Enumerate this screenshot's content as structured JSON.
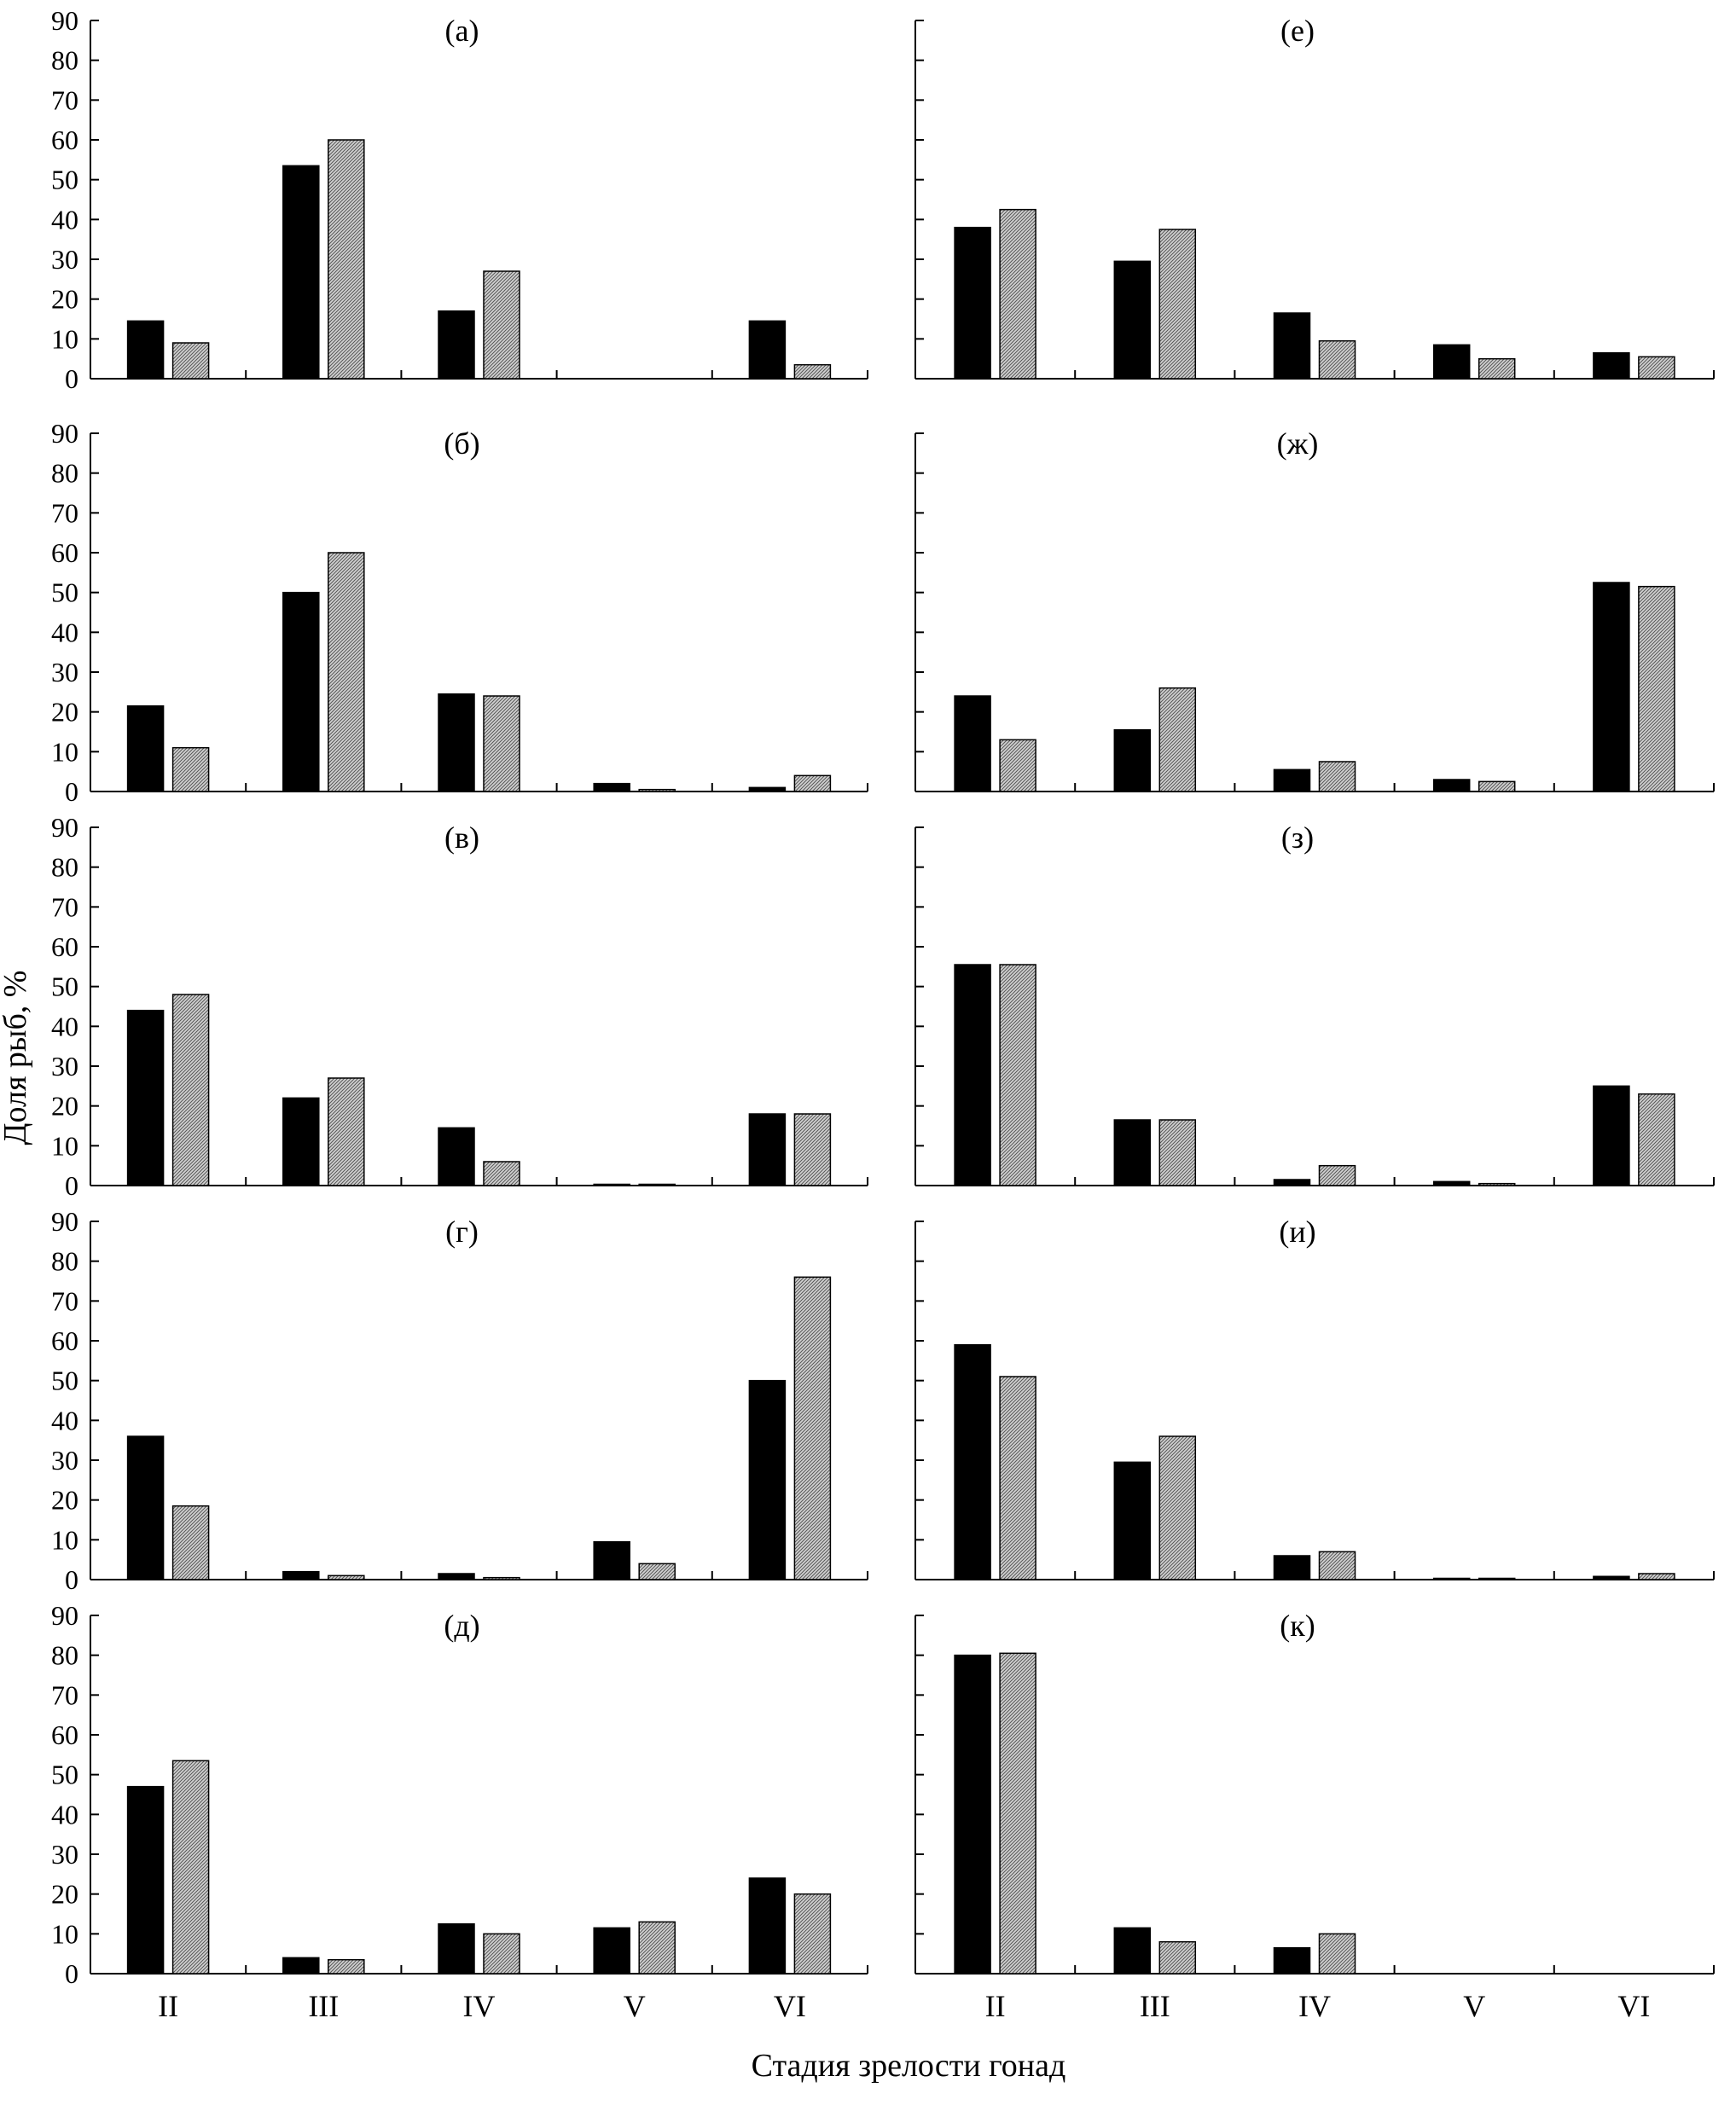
{
  "chart_data": {
    "type": "bar",
    "xlabel": "Стадия зрелости гонад",
    "ylabel": "Доля рыб, %",
    "categories": [
      "II",
      "III",
      "IV",
      "V",
      "VI"
    ],
    "ylim": [
      0,
      90
    ],
    "yticks": [
      "0",
      "10",
      "20",
      "30",
      "40",
      "50",
      "60",
      "70",
      "80",
      "90"
    ],
    "grid": false,
    "series_colors": [
      "#000000",
      "#b8b8b8"
    ],
    "panels": [
      {
        "label": "(а)",
        "series": [
          {
            "values": [
              14.5,
              53.5,
              17,
              0,
              14.5
            ]
          },
          {
            "values": [
              9,
              60,
              27,
              0,
              3.5
            ]
          }
        ]
      },
      {
        "label": "(б)",
        "series": [
          {
            "values": [
              21.5,
              50,
              24.5,
              2,
              1
            ]
          },
          {
            "values": [
              11,
              60,
              24,
              0.5,
              4
            ]
          }
        ]
      },
      {
        "label": "(в)",
        "series": [
          {
            "values": [
              44,
              22,
              14.5,
              0.3,
              18
            ]
          },
          {
            "values": [
              48,
              27,
              6,
              0.3,
              18
            ]
          }
        ]
      },
      {
        "label": "(г)",
        "series": [
          {
            "values": [
              36,
              2,
              1.5,
              9.5,
              50
            ]
          },
          {
            "values": [
              18.5,
              1,
              0.5,
              4,
              76
            ]
          }
        ]
      },
      {
        "label": "(д)",
        "series": [
          {
            "values": [
              47,
              4,
              12.5,
              11.5,
              24
            ]
          },
          {
            "values": [
              53.5,
              3.5,
              10,
              13,
              20
            ]
          }
        ]
      },
      {
        "label": "(е)",
        "series": [
          {
            "values": [
              38,
              29.5,
              16.5,
              8.5,
              6.5
            ]
          },
          {
            "values": [
              42.5,
              37.5,
              9.5,
              5,
              5.5
            ]
          }
        ]
      },
      {
        "label": "(ж)",
        "series": [
          {
            "values": [
              24,
              15.5,
              5.5,
              3,
              52.5
            ]
          },
          {
            "values": [
              13,
              26,
              7.5,
              2.5,
              51.5
            ]
          }
        ]
      },
      {
        "label": "(з)",
        "series": [
          {
            "values": [
              55.5,
              16.5,
              1.5,
              1,
              25
            ]
          },
          {
            "values": [
              55.5,
              16.5,
              5,
              0.5,
              23
            ]
          }
        ]
      },
      {
        "label": "(и)",
        "series": [
          {
            "values": [
              59,
              29.5,
              6,
              0.3,
              0.8
            ]
          },
          {
            "values": [
              51,
              36,
              7,
              0.3,
              1.5
            ]
          }
        ]
      },
      {
        "label": "(к)",
        "series": [
          {
            "values": [
              80,
              11.5,
              6.5,
              0,
              0
            ]
          },
          {
            "values": [
              80.5,
              8,
              10,
              0,
              0
            ]
          }
        ]
      }
    ]
  }
}
